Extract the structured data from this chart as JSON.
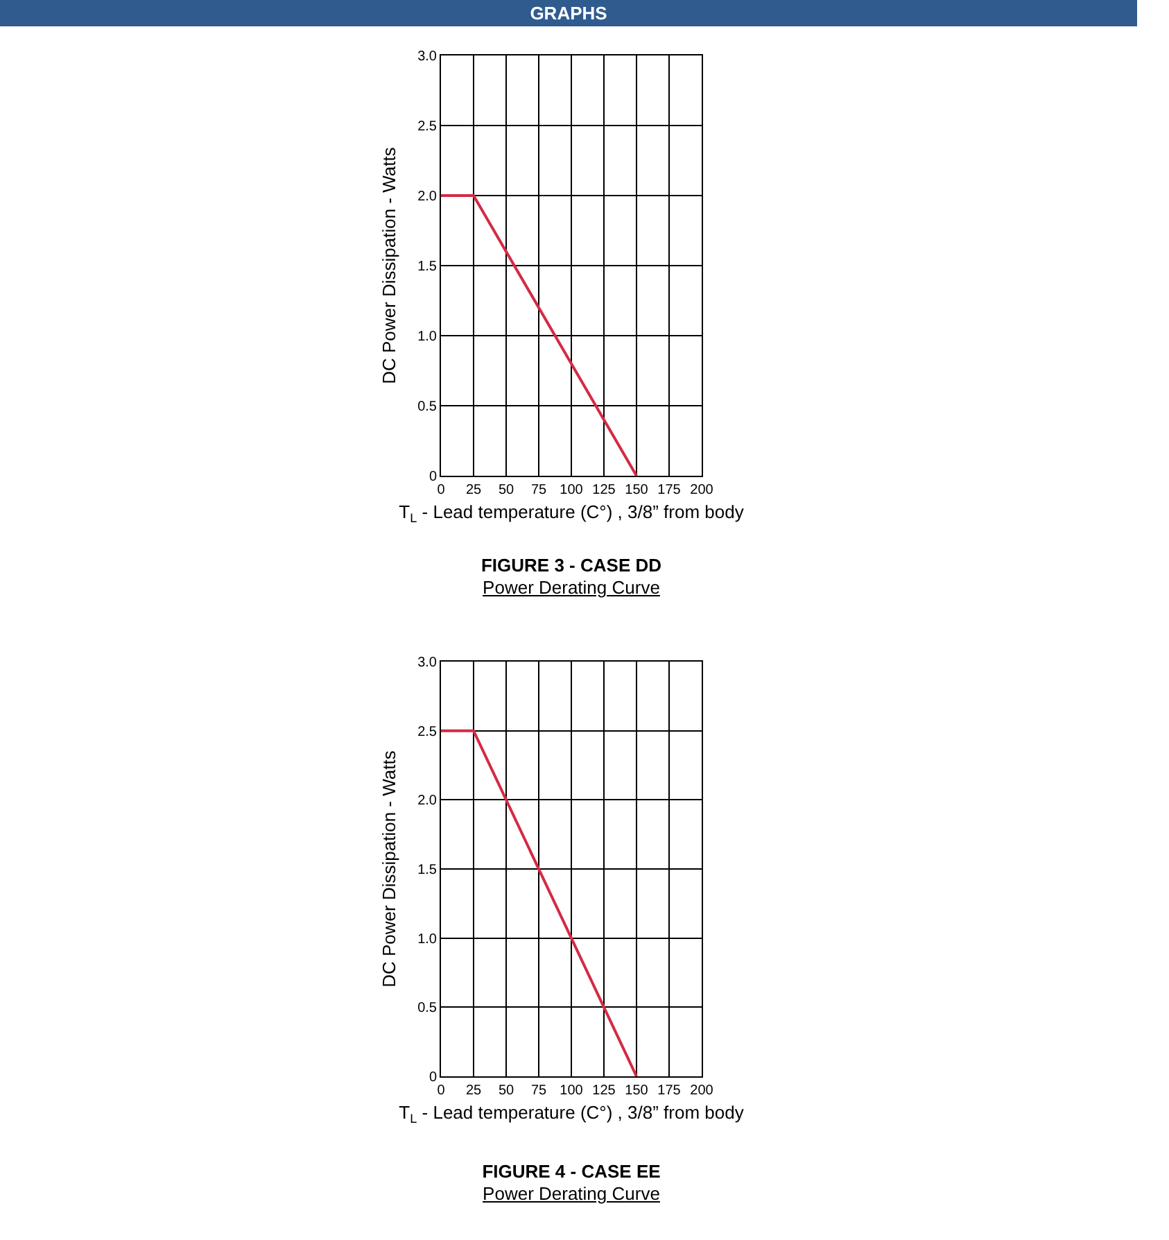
{
  "chart_data": [
    {
      "type": "line",
      "title": "FIGURE 3 - CASE DD",
      "subtitle": "Power Derating Curve",
      "xlabel": "T$_{L}$ - Lead temperature (C°) , 3/8” from body",
      "ylabel": "DC Power Dissipation - Watts",
      "annotations": [
        "GRAPHS"
      ],
      "x": [
        0,
        25,
        150
      ],
      "series": [
        {
          "color": "#d42a45",
          "values": [
            2,
            2,
            0
          ]
        }
      ],
      "xlim": [
        0,
        200
      ],
      "xticks": [
        0,
        25,
        50,
        75,
        100,
        125,
        150,
        175,
        200
      ],
      "ylim": [
        0,
        3
      ],
      "yticks": [
        0,
        0.5,
        {
          "value": 1,
          "label": "1.0"
        },
        1.5,
        {
          "value": 2,
          "label": "2.0"
        },
        2.5,
        {
          "value": 3,
          "label": "3.0"
        }
      ],
      "grid": true,
      "marker": "none",
      "line_style": "solid"
    },
    {
      "type": "line",
      "title": "FIGURE 4 - CASE EE",
      "subtitle": "Power Derating Curve",
      "xlabel": "T$_{L}$ - Lead temperature (C°) , 3/8” from body",
      "ylabel": "DC Power Dissipation - Watts",
      "x": [
        0,
        25,
        150
      ],
      "series": [
        {
          "color": "#d42a45",
          "values": [
            2.5,
            2.5,
            0
          ]
        }
      ],
      "xlim": [
        0,
        200
      ],
      "xticks": [
        0,
        25,
        50,
        75,
        100,
        125,
        150,
        175,
        200
      ],
      "ylim": [
        0,
        3
      ],
      "yticks": [
        0,
        0.5,
        {
          "value": 1,
          "label": "1.0"
        },
        1.5,
        {
          "value": 2,
          "label": "2.0"
        },
        2.5,
        {
          "value": 3,
          "label": "3.0"
        }
      ],
      "grid": true,
      "marker": "none",
      "line_style": "solid"
    }
  ]
}
